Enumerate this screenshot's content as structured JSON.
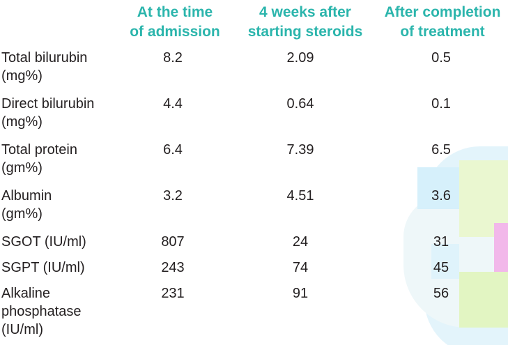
{
  "table": {
    "header": {
      "col1": [
        "At the time",
        "of admission"
      ],
      "col2": [
        "4 weeks after",
        "starting steroids"
      ],
      "col3": [
        "After completion",
        "of treatment"
      ]
    },
    "rows": [
      {
        "label": [
          "Total bilurubin",
          "(mg%)"
        ],
        "admission": "8.2",
        "four_weeks": "2.09",
        "after": "0.5"
      },
      {
        "label": [
          "Direct bilurubin",
          "(mg%)"
        ],
        "admission": "4.4",
        "four_weeks": "0.64",
        "after": "0.1"
      },
      {
        "label": [
          "Total protein",
          "(gm%)"
        ],
        "admission": "6.4",
        "four_weeks": "7.39",
        "after": "6.5"
      },
      {
        "label": [
          "Albumin",
          "(gm%)"
        ],
        "admission": "3.2",
        "four_weeks": "4.51",
        "after": "3.6"
      },
      {
        "label": [
          "SGOT (IU/ml)"
        ],
        "admission": "807",
        "four_weeks": "24",
        "after": "31"
      },
      {
        "label": [
          "SGPT (IU/ml)"
        ],
        "admission": "243",
        "four_weeks": "74",
        "after": "45"
      },
      {
        "label": [
          "Alkaline",
          "phosphatase",
          "(IU/ml)"
        ],
        "admission": "231",
        "four_weeks": "91",
        "after": "56"
      }
    ]
  },
  "colors": {
    "header_text": "#2bb5ac",
    "body_text": "#231f20"
  }
}
